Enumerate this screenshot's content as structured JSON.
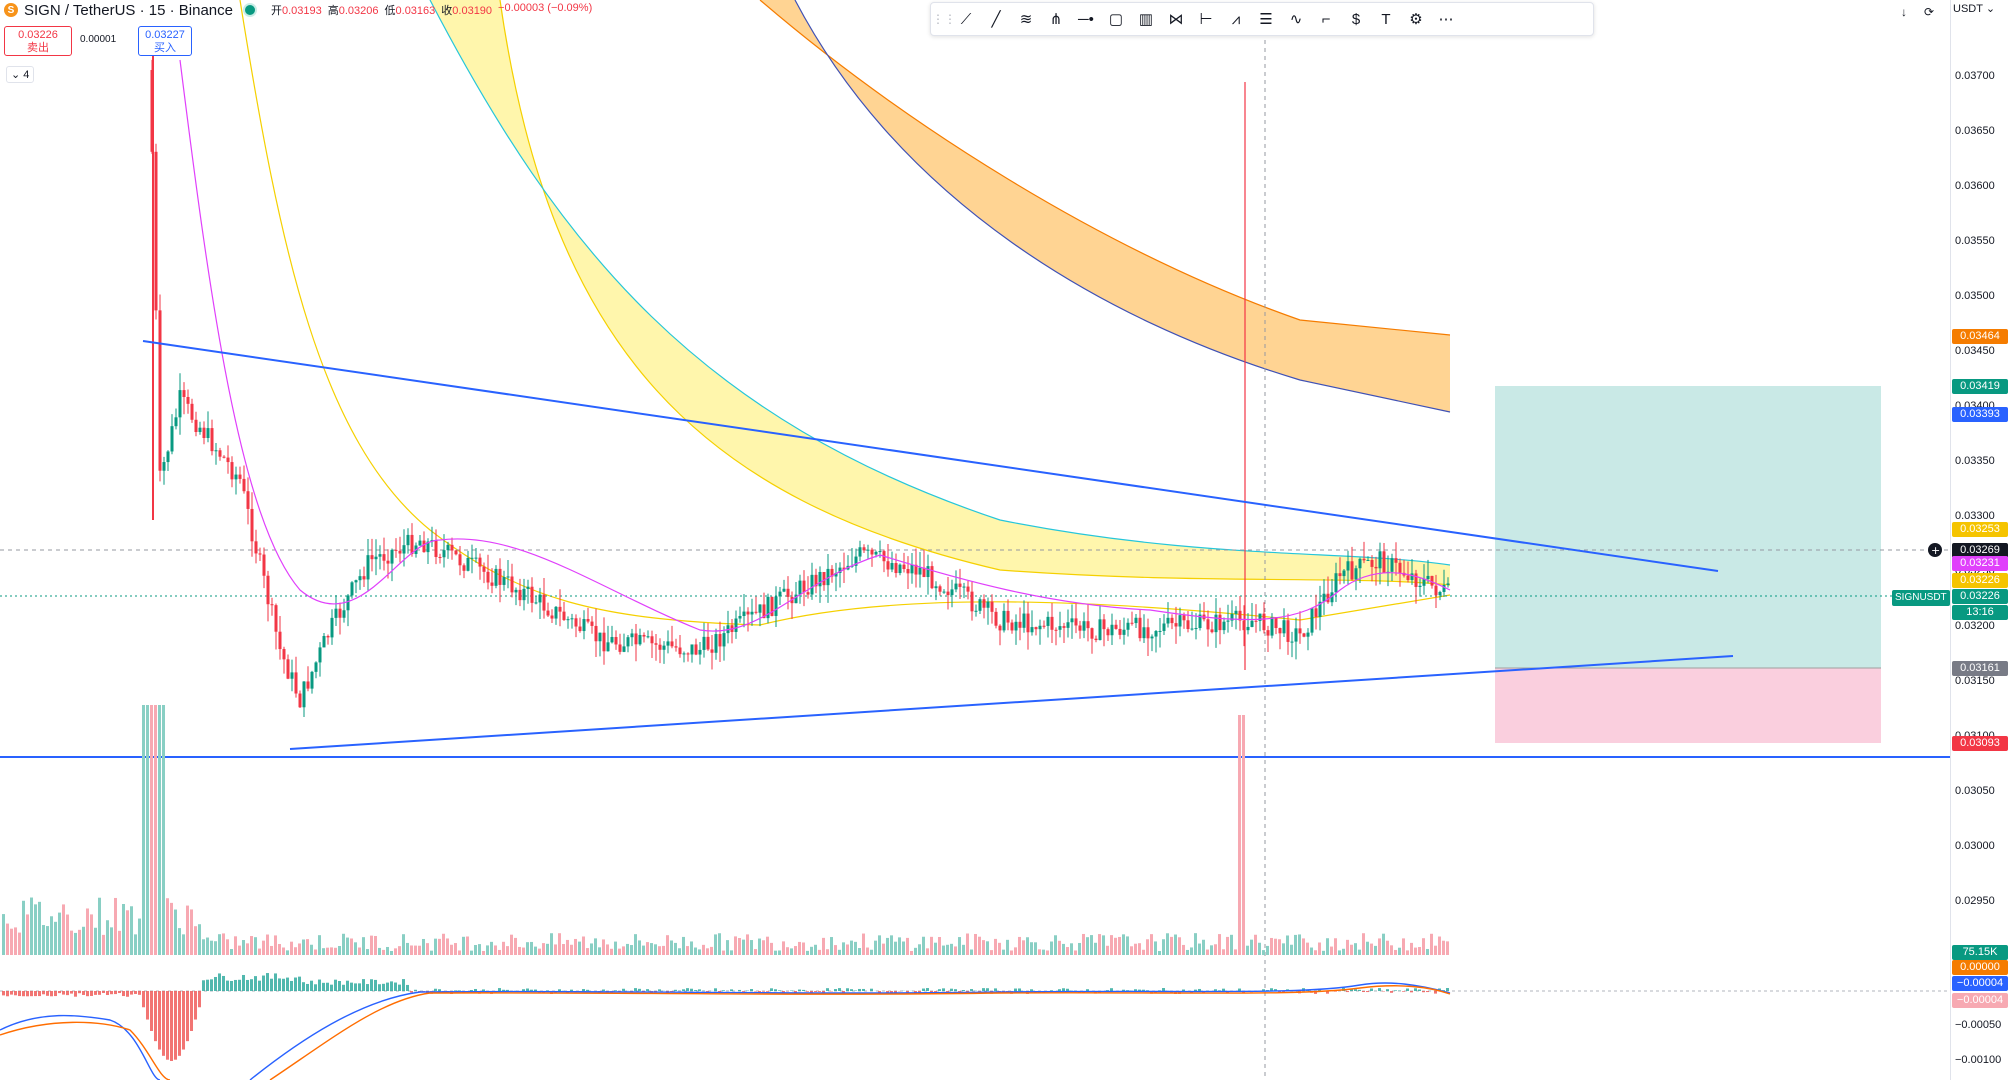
{
  "header": {
    "symbol_title": "SIGN / TetherUS · 15 · Binance",
    "ohlc": [
      {
        "key": "开",
        "value": "0.03193"
      },
      {
        "key": "高",
        "value": "0.03206"
      },
      {
        "key": "低",
        "value": "0.03163"
      },
      {
        "key": "收",
        "value": "0.03190"
      },
      {
        "key": "",
        "value": "−0.00003 (−0.09%)"
      }
    ]
  },
  "trade": {
    "sell_price": "0.03226",
    "sell_label": "卖出",
    "spread": "0.00001",
    "buy_price": "0.03227",
    "buy_label": "买入"
  },
  "indicators_toggle": "4",
  "currency": "USDT",
  "symbol_tag": "SIGNUSDT",
  "toolbar_icons": [
    "drag-handle-icon",
    "ray-icon",
    "trend-line-icon",
    "parallel-channel-icon",
    "pitchfork-icon",
    "horizontal-ray-icon",
    "rectangle-icon",
    "long-short-icon",
    "abcd-pattern-icon",
    "anchored-vwap-icon",
    "elliott-wave-icon",
    "fib-retracement-icon",
    "path-icon",
    "callout-icon",
    "price-label-icon",
    "text-icon",
    "settings-icon",
    "more-icon"
  ],
  "price_axis": {
    "ticks": [
      "0.03700",
      "0.03650",
      "0.03600",
      "0.03550",
      "0.03500",
      "0.03450",
      "0.03400",
      "0.03350",
      "0.03300",
      "0.03250",
      "0.03200",
      "0.03150",
      "0.03100",
      "0.03050",
      "0.03000",
      "0.02950"
    ],
    "osc_ticks": [
      "−0.00050",
      "−0.00100"
    ]
  },
  "price_labels": [
    {
      "text": "0.03464",
      "color": "#f57c00",
      "price": 0.03464
    },
    {
      "text": "0.03419",
      "color": "#089981",
      "price": 0.03419
    },
    {
      "text": "0.03393",
      "color": "#2962ff",
      "price": 0.03393
    },
    {
      "text": "0.03253",
      "color": "#f5c400",
      "price": 0.03253
    },
    {
      "text": "0.03269",
      "color": "#131722",
      "price": 0.03269
    },
    {
      "text": "0.03231",
      "color": "#e040fb",
      "price": 0.03231
    },
    {
      "text": "0.03226",
      "color": "#f5c400",
      "price": 0.03226
    },
    {
      "text": "0.03226",
      "color": "#089981",
      "price": 0.03226
    },
    {
      "text": "13:16",
      "color": "#089981",
      "price": 0.03226
    },
    {
      "text": "0.03161",
      "color": "#787b86",
      "price": 0.03161
    },
    {
      "text": "0.03093",
      "color": "#f23645",
      "price": 0.03093
    }
  ],
  "osc_labels": [
    {
      "text": "75.15K",
      "color": "#089981"
    },
    {
      "text": "0.00000",
      "color": "#f57c00"
    },
    {
      "text": "−0.00004",
      "color": "#2962ff"
    },
    {
      "text": "−0.00004",
      "color": "#f7a9b2"
    }
  ],
  "colors": {
    "up": "#089981",
    "down": "#f23645",
    "trendline": "#2962ff",
    "ma_fast": "#e040fb",
    "ma_yellow": "#f5d000",
    "ma_teal": "#26c6da",
    "band_yellow": "#fff59d",
    "band_orange": "#ffcc80",
    "band_orange_edge": "#f57c00",
    "band_blue_edge": "#3f51b5"
  }
}
